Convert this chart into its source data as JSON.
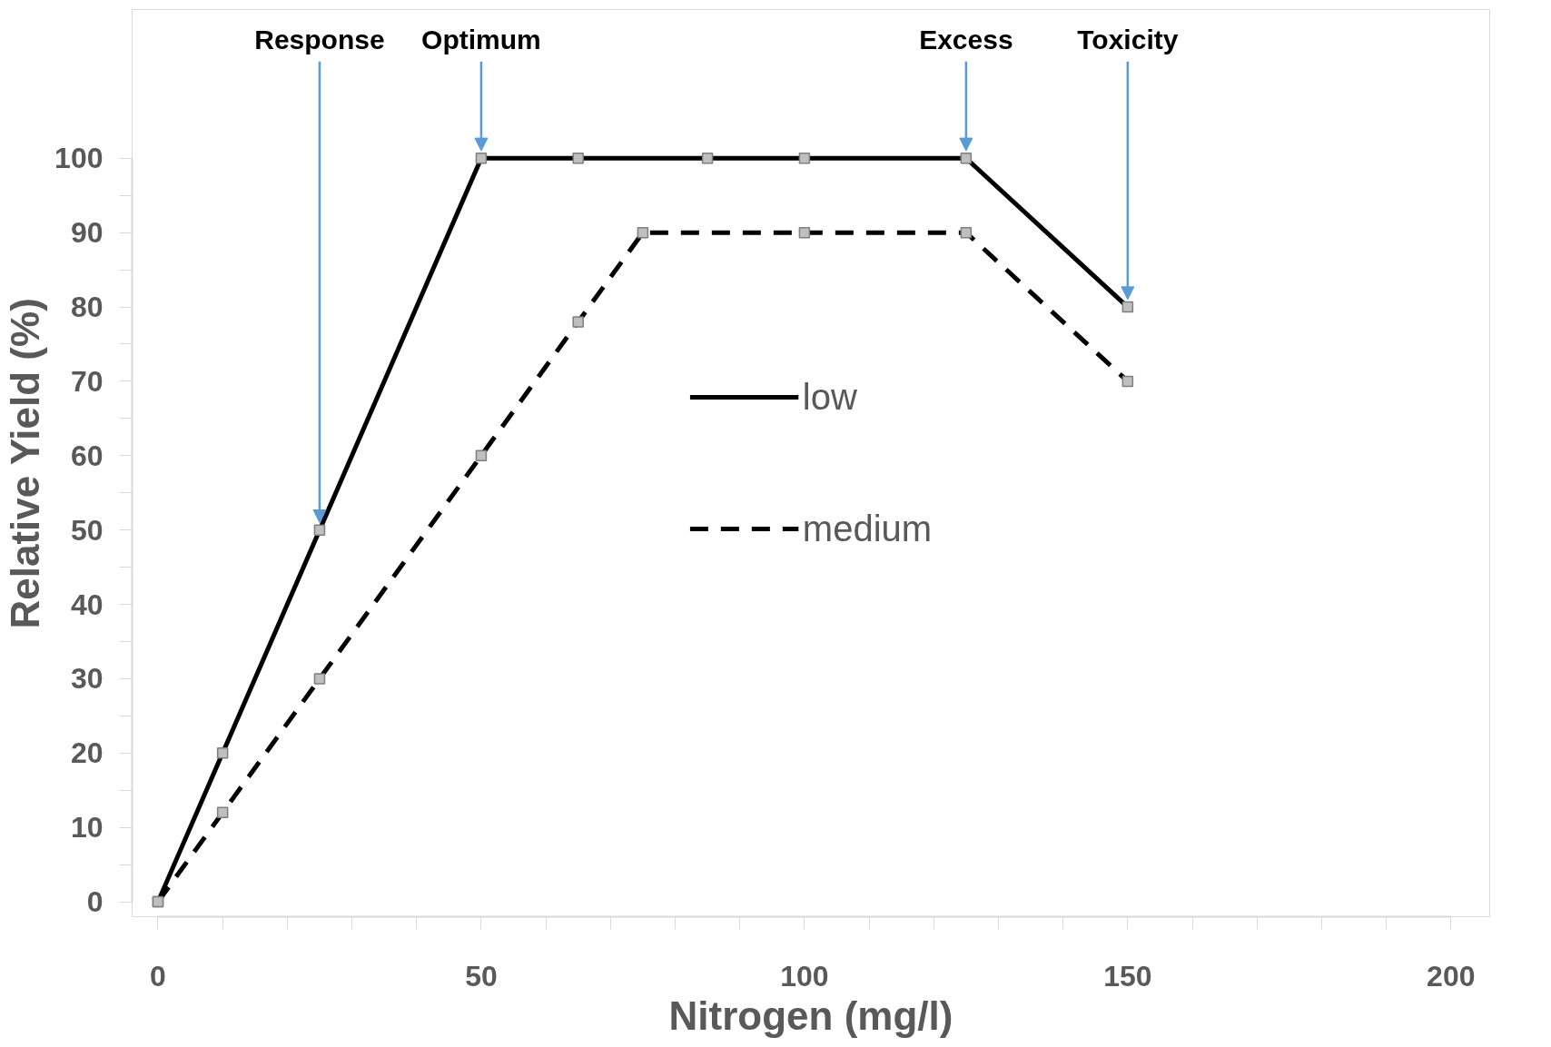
{
  "chart_data": {
    "type": "line",
    "xlabel": "Nitrogen (mg/l)",
    "ylabel": "Relative Yield (%)",
    "xlim": [
      0,
      200
    ],
    "xticks": [
      0,
      50,
      100,
      150,
      200
    ],
    "ylim": [
      0,
      100
    ],
    "yticks": [
      0,
      10,
      20,
      30,
      40,
      50,
      60,
      70,
      80,
      90,
      100
    ],
    "series": [
      {
        "name": "low",
        "color": "#000000",
        "line_style": "solid",
        "x": [
          0,
          10,
          25,
          50,
          65,
          85,
          100,
          125,
          150
        ],
        "values": [
          0,
          20,
          50,
          100,
          100,
          100,
          100,
          100,
          80
        ]
      },
      {
        "name": "medium",
        "color": "#000000",
        "line_style": "dashed",
        "x": [
          0,
          10,
          25,
          50,
          65,
          75,
          100,
          125,
          150
        ],
        "values": [
          0,
          12,
          30,
          60,
          78,
          90,
          90,
          90,
          70
        ]
      }
    ],
    "marker": "square",
    "grid": false,
    "legend": "center",
    "annotations": [
      {
        "text": "Response",
        "x": 25,
        "y": 50
      },
      {
        "text": "Optimum",
        "x": 50,
        "y": 100
      },
      {
        "text": "Excess",
        "x": 125,
        "y": 100
      },
      {
        "text": "Toxicity",
        "x": 150,
        "y": 80
      }
    ]
  }
}
